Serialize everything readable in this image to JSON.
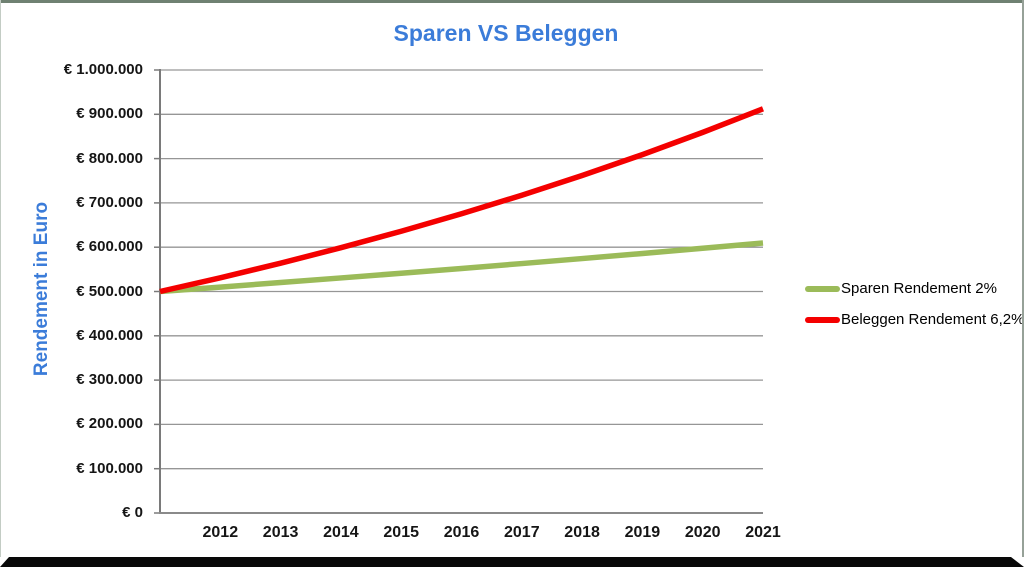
{
  "chart_data": {
    "type": "line",
    "title": "Sparen VS Beleggen",
    "ylabel": "Rendement in Euro",
    "xlabel": "",
    "ylim": [
      0,
      1000000
    ],
    "grid": "horizontal",
    "legend_position": "right",
    "x_layout_hint": "first data point sits on the y-axis; each year label marks the next of the 10 remaining points",
    "x_tick_labels": [
      "2012",
      "2013",
      "2014",
      "2015",
      "2016",
      "2017",
      "2018",
      "2019",
      "2020",
      "2021"
    ],
    "y_ticks": [
      {
        "value": 0,
        "label": "€ 0"
      },
      {
        "value": 100000,
        "label": "€ 100.000"
      },
      {
        "value": 200000,
        "label": "€ 200.000"
      },
      {
        "value": 300000,
        "label": "€ 300.000"
      },
      {
        "value": 400000,
        "label": "€ 400.000"
      },
      {
        "value": 500000,
        "label": "€ 500.000"
      },
      {
        "value": 600000,
        "label": "€ 600.000"
      },
      {
        "value": 700000,
        "label": "€ 700.000"
      },
      {
        "value": 800000,
        "label": "€ 800.000"
      },
      {
        "value": 900000,
        "label": "€ 900.000"
      },
      {
        "value": 1000000,
        "label": "€ 1.000.000"
      }
    ],
    "series": [
      {
        "name": "Sparen Rendement 2%",
        "color": "#9bbb59",
        "values": [
          500000,
          510000,
          520200,
          530604,
          541216,
          552040,
          563081,
          574343,
          585830,
          597546,
          609497
        ]
      },
      {
        "name": "Beleggen Rendement 6,2%",
        "color": "#f40000",
        "values": [
          500000,
          531000,
          563922,
          598885,
          636016,
          675449,
          717327,
          761801,
          809033,
          859193,
          912463
        ]
      }
    ]
  }
}
